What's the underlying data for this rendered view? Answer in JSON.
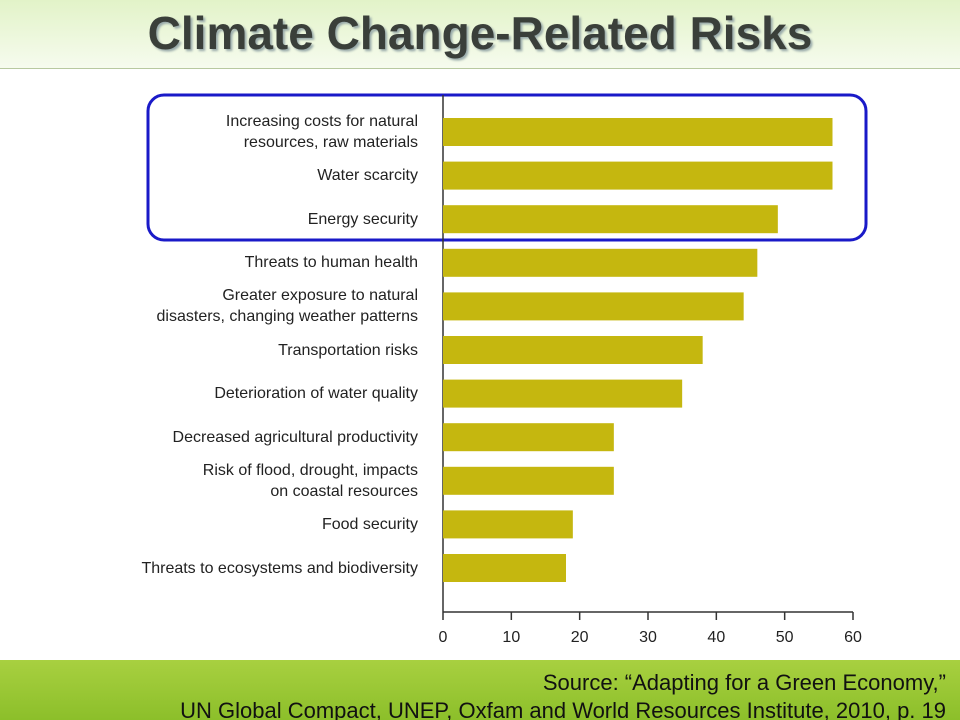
{
  "chart_data": {
    "type": "bar",
    "orientation": "horizontal",
    "title": "Climate Change-Related Risks",
    "categories": [
      "Increasing costs for natural\nresources, raw materials",
      "Water scarcity",
      "Energy security",
      "Threats to human health",
      "Greater exposure to natural\ndisasters, changing weather patterns",
      "Transportation risks",
      "Deterioration of water quality",
      "Decreased agricultural productivity",
      "Risk of flood, drought, impacts\non coastal resources",
      "Food security",
      "Threats to ecosystems and biodiversity"
    ],
    "values": [
      57,
      57,
      49,
      46,
      44,
      38,
      35,
      25,
      25,
      19,
      18
    ],
    "color": "#c5b70f",
    "xlim": [
      0,
      60
    ],
    "xticks": [
      0,
      10,
      20,
      30,
      40,
      50,
      60
    ],
    "source": [
      "Source: “Adapting for a Green Economy,”",
      "UN Global Compact, UNEP, Oxfam and World Resources Institute, 2010, p. 19"
    ]
  }
}
